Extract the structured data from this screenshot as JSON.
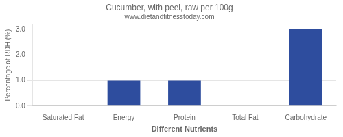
{
  "chart_data": {
    "type": "bar",
    "title": "Cucumber, with peel, raw per 100g",
    "subtitle": "www.dietandfitnesstoday.com",
    "xlabel": "Different Nutrients",
    "ylabel": "Percentage of RDH (%)",
    "categories": [
      "Saturated Fat",
      "Energy",
      "Protein",
      "Total Fat",
      "Carbohydrate"
    ],
    "values": [
      0.0,
      1.0,
      1.0,
      0.0,
      3.0
    ],
    "color": "#2e4d9e",
    "ylim": [
      0,
      3.2
    ],
    "yticks": [
      {
        "value": 0.0,
        "label": "0.0"
      },
      {
        "value": 1.0,
        "label": "1.0"
      },
      {
        "value": 2.0,
        "label": "2.0"
      },
      {
        "value": 3.0,
        "label": "3.0"
      }
    ],
    "grid": true
  }
}
